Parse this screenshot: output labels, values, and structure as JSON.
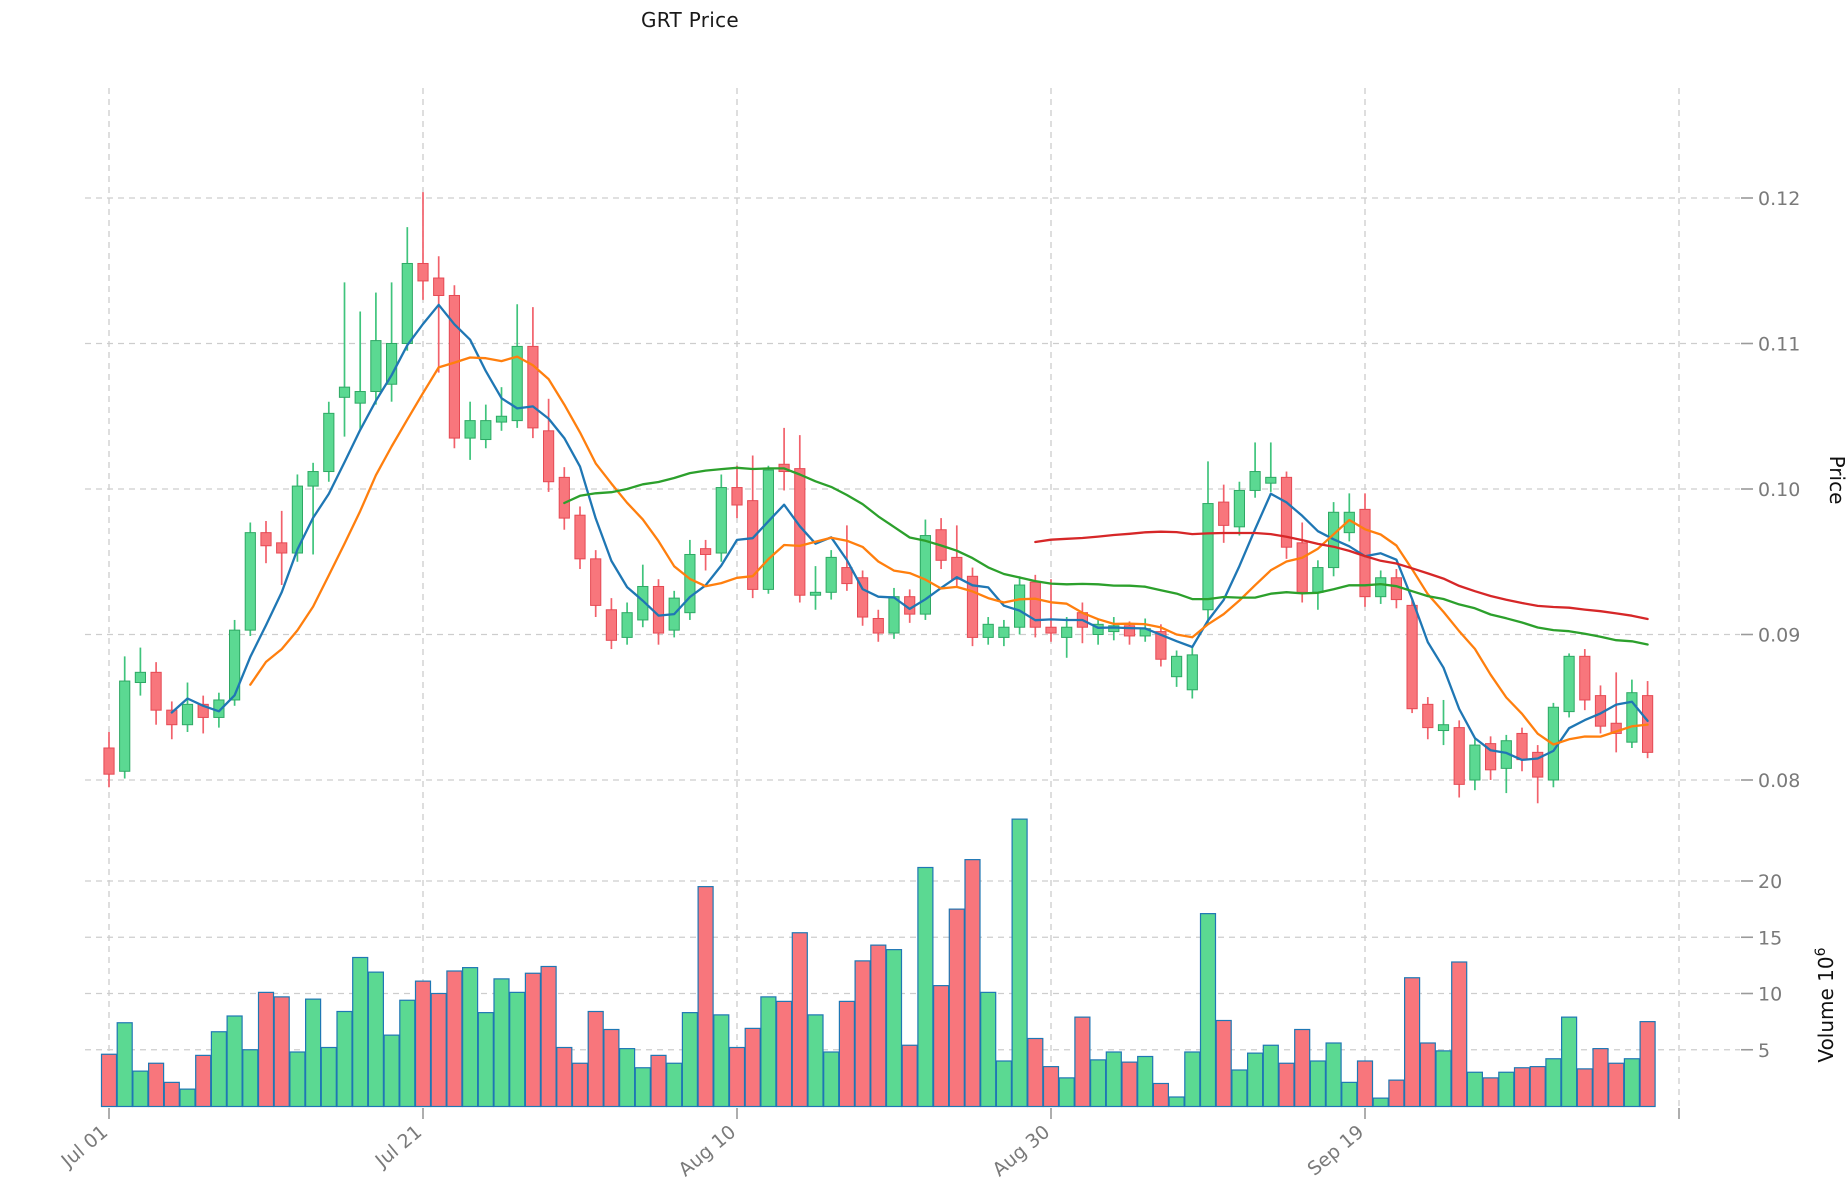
{
  "title": "GRT Price",
  "axes": {
    "price_axis_label": "Price",
    "volume_axis_label_base": "Volume 10",
    "volume_axis_label_exp": "6",
    "price_tick_labels": [
      "0.12",
      "0.11",
      "0.10",
      "0.09",
      "0.08"
    ],
    "volume_tick_labels": [
      "20",
      "15",
      "10",
      "5"
    ]
  },
  "chart_data": {
    "type": "candlestick",
    "title": "GRT Price",
    "ylabel": "Price",
    "ylabel_volume": "Volume 10^6",
    "grid": true,
    "legend_position": "none",
    "price_ticks": [
      0.12,
      0.11,
      0.1,
      0.09,
      0.08
    ],
    "volume_ticks_millions": [
      20,
      15,
      10,
      5
    ],
    "price_ylim": [
      0.0778,
      0.1276
    ],
    "volume_ylim_millions": [
      0,
      26.4
    ],
    "x_gridlines": [
      {
        "day_index": 0,
        "label": "Jul 01"
      },
      {
        "day_index": 20,
        "label": "Jul 21"
      },
      {
        "day_index": 40,
        "label": "Aug 10"
      },
      {
        "day_index": 60,
        "label": "Aug 30"
      },
      {
        "day_index": 80,
        "label": "Sep 19"
      },
      {
        "day_index": 100,
        "label": ""
      }
    ],
    "mav_windows": [
      5,
      10,
      30,
      60
    ],
    "mav_colors": [
      "#1f77b4",
      "#ff7f0e",
      "#2ca02c",
      "#d62728"
    ],
    "colors": {
      "up_fill": "#5bd992",
      "up_edge": "#2ea864",
      "up_wick": "#3fc47c",
      "down_fill": "#f8767c",
      "down_edge": "#e54a54",
      "down_wick": "#f2616b",
      "volume_edge": "#1f77b4",
      "grid": "#cdcdcd",
      "tick_text": "#7a7a7a",
      "tick_mark": "#9a9a9a",
      "title_text": "#1a1a1a",
      "background": "#ffffff"
    },
    "columns": [
      "date",
      "open",
      "high",
      "low",
      "close",
      "volume_millions"
    ],
    "candles": [
      [
        "Jul 01",
        0.0822,
        0.0833,
        0.0795,
        0.0804,
        4.6
      ],
      [
        "Jul 02",
        0.0806,
        0.0885,
        0.0801,
        0.0868,
        7.4
      ],
      [
        "Jul 03",
        0.0867,
        0.0891,
        0.0858,
        0.0874,
        3.1
      ],
      [
        "Jul 04",
        0.0874,
        0.0881,
        0.0838,
        0.0848,
        3.8
      ],
      [
        "Jul 05",
        0.0848,
        0.0854,
        0.0828,
        0.0838,
        2.1
      ],
      [
        "Jul 06",
        0.0838,
        0.0867,
        0.0833,
        0.0852,
        1.5
      ],
      [
        "Jul 07",
        0.0852,
        0.0858,
        0.0832,
        0.0843,
        4.5
      ],
      [
        "Jul 08",
        0.0843,
        0.086,
        0.0836,
        0.0855,
        6.6
      ],
      [
        "Jul 09",
        0.0855,
        0.091,
        0.0851,
        0.0903,
        8.0
      ],
      [
        "Jul 10",
        0.0903,
        0.0977,
        0.0899,
        0.097,
        5.0
      ],
      [
        "Jul 11",
        0.097,
        0.0978,
        0.0949,
        0.0961,
        10.1
      ],
      [
        "Jul 12",
        0.0963,
        0.0985,
        0.0934,
        0.0956,
        9.7
      ],
      [
        "Jul 13",
        0.0956,
        0.101,
        0.095,
        0.1002,
        4.8
      ],
      [
        "Jul 14",
        0.1002,
        0.1018,
        0.0955,
        0.1012,
        9.5
      ],
      [
        "Jul 15",
        0.1012,
        0.106,
        0.1005,
        0.1052,
        5.2
      ],
      [
        "Jul 16",
        0.1063,
        0.1142,
        0.1036,
        0.107,
        8.4
      ],
      [
        "Jul 17",
        0.1059,
        0.1122,
        0.1041,
        0.1067,
        13.2
      ],
      [
        "Jul 18",
        0.1067,
        0.1135,
        0.1058,
        0.1102,
        11.9
      ],
      [
        "Jul 19",
        0.1072,
        0.1142,
        0.106,
        0.11,
        6.3
      ],
      [
        "Jul 20",
        0.11,
        0.118,
        0.1095,
        0.1155,
        9.4
      ],
      [
        "Jul 21",
        0.1155,
        0.1204,
        0.113,
        0.1143,
        11.1
      ],
      [
        "Jul 22",
        0.1145,
        0.116,
        0.108,
        0.1133,
        10.0
      ],
      [
        "Jul 23",
        0.1133,
        0.114,
        0.1028,
        0.1035,
        12.0
      ],
      [
        "Jul 24",
        0.1035,
        0.106,
        0.102,
        0.1047,
        12.3
      ],
      [
        "Jul 25",
        0.1034,
        0.1058,
        0.1028,
        0.1047,
        8.3
      ],
      [
        "Jul 26",
        0.1046,
        0.107,
        0.104,
        0.105,
        11.3
      ],
      [
        "Jul 27",
        0.1047,
        0.1127,
        0.1042,
        0.1098,
        10.1
      ],
      [
        "Jul 28",
        0.1098,
        0.1125,
        0.1035,
        0.1042,
        11.8
      ],
      [
        "Jul 29",
        0.104,
        0.1062,
        0.0998,
        0.1005,
        12.4
      ],
      [
        "Jul 30",
        0.1008,
        0.1015,
        0.0972,
        0.098,
        5.2
      ],
      [
        "Jul 31",
        0.0982,
        0.0988,
        0.0945,
        0.0952,
        3.8
      ],
      [
        "Aug 01",
        0.0952,
        0.0958,
        0.0912,
        0.092,
        8.4
      ],
      [
        "Aug 02",
        0.0917,
        0.0925,
        0.089,
        0.0896,
        6.8
      ],
      [
        "Aug 03",
        0.0898,
        0.0922,
        0.0893,
        0.0915,
        5.1
      ],
      [
        "Aug 04",
        0.091,
        0.0948,
        0.0905,
        0.0933,
        3.4
      ],
      [
        "Aug 05",
        0.0933,
        0.0938,
        0.0893,
        0.0901,
        4.5
      ],
      [
        "Aug 06",
        0.0903,
        0.093,
        0.0898,
        0.0925,
        3.8
      ],
      [
        "Aug 07",
        0.0915,
        0.0965,
        0.091,
        0.0955,
        8.3
      ],
      [
        "Aug 08",
        0.0959,
        0.0965,
        0.0944,
        0.0955,
        19.5
      ],
      [
        "Aug 09",
        0.0956,
        0.101,
        0.095,
        0.1001,
        8.1
      ],
      [
        "Aug 10",
        0.1001,
        0.1016,
        0.098,
        0.0989,
        5.2
      ],
      [
        "Aug 11",
        0.0992,
        0.1023,
        0.0925,
        0.0931,
        6.9
      ],
      [
        "Aug 12",
        0.0931,
        0.1016,
        0.0928,
        0.1013,
        9.7
      ],
      [
        "Aug 13",
        0.1017,
        0.1042,
        0.0999,
        0.1012,
        9.3
      ],
      [
        "Aug 14",
        0.1014,
        0.1037,
        0.0922,
        0.0927,
        15.4
      ],
      [
        "Aug 15",
        0.0927,
        0.0947,
        0.0917,
        0.0929,
        8.1
      ],
      [
        "Aug 16",
        0.0929,
        0.0958,
        0.0924,
        0.0953,
        4.8
      ],
      [
        "Aug 17",
        0.0946,
        0.0975,
        0.093,
        0.0935,
        9.3
      ],
      [
        "Aug 18",
        0.0939,
        0.0944,
        0.0906,
        0.0912,
        12.9
      ],
      [
        "Aug 19",
        0.0911,
        0.0917,
        0.0895,
        0.0901,
        14.3
      ],
      [
        "Aug 20",
        0.0901,
        0.0932,
        0.0897,
        0.0926,
        13.9
      ],
      [
        "Aug 21",
        0.0926,
        0.0931,
        0.0908,
        0.0914,
        5.4
      ],
      [
        "Aug 22",
        0.0914,
        0.0979,
        0.091,
        0.0968,
        21.2
      ],
      [
        "Aug 23",
        0.0972,
        0.098,
        0.0945,
        0.0951,
        10.7
      ],
      [
        "Aug 24",
        0.0953,
        0.0975,
        0.0932,
        0.0938,
        17.5
      ],
      [
        "Aug 25",
        0.094,
        0.0946,
        0.0892,
        0.0898,
        21.9
      ],
      [
        "Aug 26",
        0.0898,
        0.0912,
        0.0893,
        0.0907,
        10.1
      ],
      [
        "Aug 27",
        0.0898,
        0.091,
        0.0892,
        0.0905,
        4.0
      ],
      [
        "Aug 28",
        0.0905,
        0.094,
        0.09,
        0.0934,
        25.5
      ],
      [
        "Aug 29",
        0.0936,
        0.0941,
        0.0898,
        0.0905,
        6.0
      ],
      [
        "Aug 30",
        0.0905,
        0.0938,
        0.0895,
        0.0901,
        3.5
      ],
      [
        "Aug 31",
        0.0898,
        0.0912,
        0.0884,
        0.0905,
        2.5
      ],
      [
        "Sep 01",
        0.0915,
        0.0922,
        0.0894,
        0.0905,
        7.9
      ],
      [
        "Sep 02",
        0.09,
        0.091,
        0.0893,
        0.0907,
        4.1
      ],
      [
        "Sep 03",
        0.0902,
        0.0912,
        0.0896,
        0.0906,
        4.8
      ],
      [
        "Sep 04",
        0.0906,
        0.0909,
        0.0893,
        0.0899,
        3.9
      ],
      [
        "Sep 05",
        0.0899,
        0.0911,
        0.0895,
        0.0904,
        4.4
      ],
      [
        "Sep 06",
        0.0902,
        0.0907,
        0.0878,
        0.0883,
        2.0
      ],
      [
        "Sep 07",
        0.0871,
        0.0889,
        0.0864,
        0.0885,
        0.8
      ],
      [
        "Sep 08",
        0.0862,
        0.0891,
        0.0856,
        0.0886,
        4.8
      ],
      [
        "Sep 09",
        0.0917,
        0.1019,
        0.0908,
        0.099,
        17.1
      ],
      [
        "Sep 10",
        0.0991,
        0.1003,
        0.0963,
        0.0975,
        7.6
      ],
      [
        "Sep 11",
        0.0974,
        0.1005,
        0.0968,
        0.0999,
        3.2
      ],
      [
        "Sep 12",
        0.0999,
        0.1032,
        0.0994,
        0.1012,
        4.7
      ],
      [
        "Sep 13",
        0.1004,
        0.1032,
        0.0998,
        0.1008,
        5.4
      ],
      [
        "Sep 14",
        0.1008,
        0.1012,
        0.0952,
        0.096,
        3.8
      ],
      [
        "Sep 15",
        0.0963,
        0.0977,
        0.0922,
        0.0929,
        6.8
      ],
      [
        "Sep 16",
        0.0929,
        0.0951,
        0.0917,
        0.0946,
        4.0
      ],
      [
        "Sep 17",
        0.0946,
        0.0991,
        0.094,
        0.0984,
        5.6
      ],
      [
        "Sep 18",
        0.097,
        0.0997,
        0.0964,
        0.0984,
        2.1
      ],
      [
        "Sep 19",
        0.0986,
        0.0997,
        0.0919,
        0.0926,
        4.0
      ],
      [
        "Sep 20",
        0.0926,
        0.0944,
        0.0921,
        0.0939,
        0.7
      ],
      [
        "Sep 21",
        0.0939,
        0.0945,
        0.0918,
        0.0924,
        2.3
      ],
      [
        "Sep 22",
        0.092,
        0.0925,
        0.0846,
        0.0849,
        11.4
      ],
      [
        "Sep 23",
        0.0852,
        0.0857,
        0.0828,
        0.0836,
        5.6
      ],
      [
        "Sep 24",
        0.0834,
        0.0855,
        0.0824,
        0.0838,
        4.9
      ],
      [
        "Sep 25",
        0.0836,
        0.0841,
        0.0788,
        0.0797,
        12.8
      ],
      [
        "Sep 26",
        0.08,
        0.0828,
        0.0793,
        0.0824,
        3.0
      ],
      [
        "Sep 27",
        0.0825,
        0.083,
        0.08,
        0.0807,
        2.5
      ],
      [
        "Sep 28",
        0.0808,
        0.0831,
        0.0791,
        0.0827,
        3.0
      ],
      [
        "Sep 29",
        0.0832,
        0.0836,
        0.0806,
        0.0814,
        3.4
      ],
      [
        "Sep 30",
        0.0819,
        0.0824,
        0.0784,
        0.0802,
        3.5
      ],
      [
        "Oct 01",
        0.08,
        0.0853,
        0.0795,
        0.085,
        4.2
      ],
      [
        "Oct 02",
        0.0847,
        0.0887,
        0.0843,
        0.0885,
        7.9
      ],
      [
        "Oct 03",
        0.0885,
        0.089,
        0.0848,
        0.0855,
        3.3
      ],
      [
        "Oct 04",
        0.0858,
        0.0865,
        0.0832,
        0.0837,
        5.1
      ],
      [
        "Oct 05",
        0.0839,
        0.0874,
        0.0819,
        0.0832,
        3.8
      ],
      [
        "Oct 06",
        0.0826,
        0.0869,
        0.0822,
        0.086,
        4.2
      ],
      [
        "Oct 07",
        0.0858,
        0.0868,
        0.0815,
        0.0819,
        7.5
      ]
    ]
  }
}
